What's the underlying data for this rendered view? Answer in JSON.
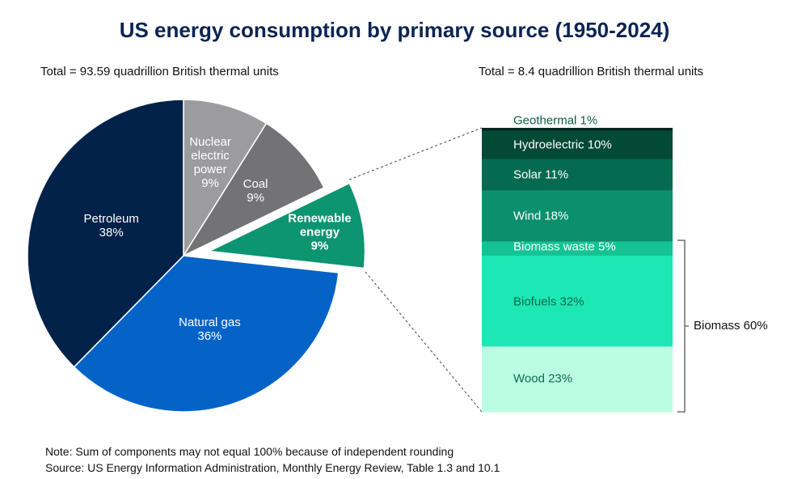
{
  "chart_data": [
    {
      "type": "pie",
      "title": "US energy consumption by primary source (1950-2024)",
      "subtitle": "Total = 93.59 quadrillion British thermal units",
      "slices": [
        {
          "label": "Nuclear electric power",
          "lines": [
            "Nuclear",
            "electric",
            "power"
          ],
          "value": 9,
          "value_label": "9%",
          "color": "#9c9ca0"
        },
        {
          "label": "Coal",
          "lines": [
            "Coal"
          ],
          "value": 9,
          "value_label": "9%",
          "color": "#737375"
        },
        {
          "label": "Renewable energy",
          "lines": [
            "Renewable",
            "energy"
          ],
          "value": 9,
          "value_label": "9%",
          "color": "#0d9471",
          "exploded": true
        },
        {
          "label": "Natural gas",
          "lines": [
            "Natural gas"
          ],
          "value": 36,
          "value_label": "36%",
          "color": "#0563c8"
        },
        {
          "label": "Petroleum",
          "lines": [
            "Petroleum"
          ],
          "value": 38,
          "value_label": "38%",
          "color": "#02224a"
        }
      ]
    },
    {
      "type": "bar",
      "stacked": true,
      "subtitle": "Total = 8.4 quadrillion British thermal units",
      "segments": [
        {
          "label": "Geothermal 1%",
          "value": 1,
          "color": "#06261b",
          "text_color": "#0b5c44"
        },
        {
          "label": "Hydroelectric 10%",
          "value": 10,
          "color": "#034a35",
          "text_color": "#ffffff"
        },
        {
          "label": "Solar 11%",
          "value": 11,
          "color": "#056b50",
          "text_color": "#ffffff"
        },
        {
          "label": "Wind 18%",
          "value": 18,
          "color": "#0c8f6d",
          "text_color": "#ffffff"
        },
        {
          "label": "Biomass waste 5%",
          "value": 5,
          "color": "#14c394",
          "text_color": "#ffffff"
        },
        {
          "label": "Biofuels 32%",
          "value": 32,
          "color": "#1de8b5",
          "text_color": "#0b6a4f"
        },
        {
          "label": "Wood 23%",
          "value": 23,
          "color": "#bbfde3",
          "text_color": "#0b6a4f"
        }
      ],
      "group_annotation": "Biomass 60%"
    }
  ],
  "notes": {
    "note": "Note: Sum of components may not equal 100% because of independent rounding",
    "source": "Source: US Energy Information Administration, Monthly Energy Review, Table 1.3 and 10.1"
  }
}
